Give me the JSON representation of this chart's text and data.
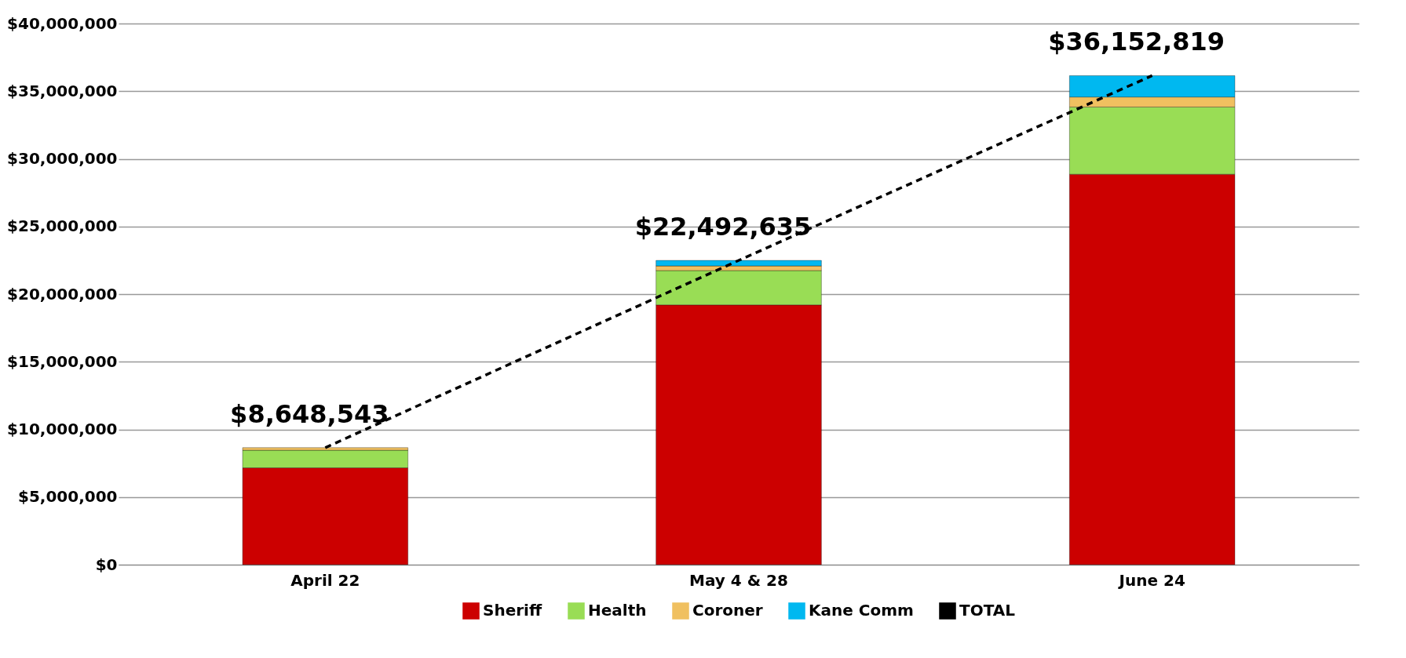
{
  "chart_data": {
    "type": "bar",
    "stacked": true,
    "categories": [
      "April 22",
      "May 4 & 28",
      "June 24"
    ],
    "series": [
      {
        "name": "Sheriff",
        "color": "#cc0000",
        "values": [
          7160000,
          19200000,
          28860000
        ]
      },
      {
        "name": "Health",
        "color": "#99dd55",
        "values": [
          1300000,
          2540000,
          4970000
        ]
      },
      {
        "name": "Coroner",
        "color": "#f0c060",
        "values": [
          190000,
          340000,
          740000
        ]
      },
      {
        "name": "Kane Comm",
        "color": "#00b8f0",
        "values": [
          null,
          410000,
          1580000
        ]
      },
      {
        "name": "TOTAL",
        "type": "line",
        "color": "#000000",
        "line_style": "dashed",
        "values": [
          8648543,
          22492635,
          36152819
        ],
        "value_labels": [
          "$8,648,543",
          "$22,492,635",
          "$36,152,819"
        ]
      }
    ],
    "ylim": [
      0,
      40000000
    ],
    "yticks": [
      {
        "value": 0,
        "label": "$0"
      },
      {
        "value": 5000000,
        "label": "$5,000,000"
      },
      {
        "value": 10000000,
        "label": "$10,000,000"
      },
      {
        "value": 15000000,
        "label": "$15,000,000"
      },
      {
        "value": 20000000,
        "label": "$20,000,000"
      },
      {
        "value": 25000000,
        "label": "$25,000,000"
      },
      {
        "value": 30000000,
        "label": "$30,000,000"
      },
      {
        "value": 35000000,
        "label": "$35,000,000"
      },
      {
        "value": 40000000,
        "label": "$40,000,000"
      }
    ],
    "grid": "y",
    "legend": "bottom"
  }
}
